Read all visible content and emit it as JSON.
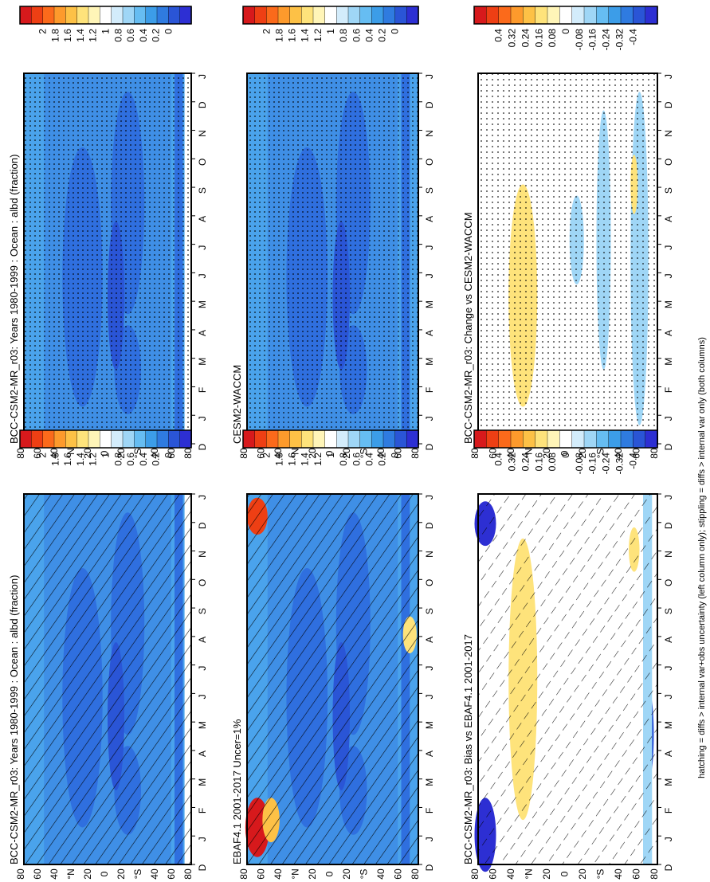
{
  "figure": {
    "footnote": "hatching = diffs > internal var+obs uncertainty (left column only); stippling = diffs > internal var only (both columns)"
  },
  "colorbars": {
    "absolute": {
      "labels": [
        "2",
        "1.8",
        "1.6",
        "1.4",
        "1.2",
        "1",
        "0.8",
        "0.6",
        "0.4",
        "0.2",
        "0"
      ],
      "colors": [
        "#d7191c",
        "#ee3f14",
        "#fb6a1b",
        "#fd9a2c",
        "#fdc146",
        "#fee37b",
        "#fff5b8",
        "#ffffff",
        "#d3ecfb",
        "#9fd6f6",
        "#66bdf2",
        "#3c9de8",
        "#2f7be0",
        "#2a55d6",
        "#2d2fd3"
      ]
    },
    "difference": {
      "labels": [
        "0.4",
        "0.32",
        "0.24",
        "0.16",
        "0.08",
        "0",
        "-0.08",
        "-0.16",
        "-0.24",
        "-0.32",
        "-0.4"
      ],
      "colors": [
        "#d7191c",
        "#ee3f14",
        "#fb6a1b",
        "#fd9a2c",
        "#fdc146",
        "#fee37b",
        "#fff5b8",
        "#ffffff",
        "#d3ecfb",
        "#9fd6f6",
        "#66bdf2",
        "#3c9de8",
        "#2f7be0",
        "#2a55d6",
        "#2d2fd3"
      ]
    }
  },
  "axes": {
    "months": [
      "D",
      "J",
      "F",
      "M",
      "A",
      "M",
      "J",
      "J",
      "A",
      "S",
      "O",
      "N",
      "D",
      "J"
    ],
    "lat_labels": [
      "80",
      "60",
      "40",
      "°N",
      "20",
      "0",
      "20",
      "°S",
      "40",
      "60",
      "80"
    ]
  },
  "panels": [
    {
      "id": "model-left",
      "title": "BCC-CSM2-MR_r03: Years 1980-1999 : Ocean : albd (fraction)",
      "colorbar": "absolute",
      "pattern": "hatch"
    },
    {
      "id": "obs",
      "title": "EBAF4.1 2001-2017 Uncer=1%",
      "colorbar": "absolute",
      "pattern": "hatch"
    },
    {
      "id": "bias",
      "title": "BCC-CSM2-MR_r03: Bias vs EBAF4.1 2001-2017",
      "colorbar": "difference",
      "pattern": "hatch-sparse"
    },
    {
      "id": "model-right",
      "title": "BCC-CSM2-MR_r03: Years 1980-1999 : Ocean : albd (fraction)",
      "colorbar": "absolute",
      "pattern": "stipple"
    },
    {
      "id": "ref",
      "title": "CESM2-WACCM",
      "colorbar": "absolute",
      "pattern": "stipple"
    },
    {
      "id": "change",
      "title": "BCC-CSM2-MR_r03: Change vs CESM2-WACCM",
      "colorbar": "difference",
      "pattern": "stipple-sparse"
    }
  ],
  "chart_data": [
    {
      "type": "heatmap",
      "title": "BCC-CSM2-MR_r03: Years 1980-1999 : Ocean : albd (fraction)",
      "x": [
        "D",
        "J",
        "F",
        "M",
        "A",
        "M",
        "J",
        "J",
        "A",
        "S",
        "O",
        "N",
        "D",
        "J"
      ],
      "y_range": [
        -90,
        90
      ],
      "value_range": [
        0,
        2
      ],
      "dominant_range": [
        0.2,
        0.8
      ]
    },
    {
      "type": "heatmap",
      "title": "EBAF4.1 2001-2017 Uncer=1%",
      "x": [
        "D",
        "J",
        "F",
        "M",
        "A",
        "M",
        "J",
        "J",
        "A",
        "S",
        "O",
        "N",
        "D",
        "J"
      ],
      "y_range": [
        -90,
        90
      ],
      "value_range": [
        0,
        2
      ],
      "dominant_range": [
        0.2,
        0.8
      ],
      "high_values_near": "80N in Dec-Feb (>1.6)"
    },
    {
      "type": "heatmap",
      "title": "BCC-CSM2-MR_r03: Bias vs EBAF4.1 2001-2017",
      "x": [
        "D",
        "J",
        "F",
        "M",
        "A",
        "M",
        "J",
        "J",
        "A",
        "S",
        "O",
        "N",
        "D",
        "J"
      ],
      "y_range": [
        -90,
        90
      ],
      "value_range": [
        -0.4,
        0.4
      ]
    },
    {
      "type": "heatmap",
      "title": "BCC-CSM2-MR_r03: Years 1980-1999 : Ocean : albd (fraction)",
      "x": [
        "D",
        "J",
        "F",
        "M",
        "A",
        "M",
        "J",
        "J",
        "A",
        "S",
        "O",
        "N",
        "D",
        "J"
      ],
      "y_range": [
        -90,
        90
      ],
      "value_range": [
        0,
        2
      ],
      "dominant_range": [
        0.2,
        0.8
      ]
    },
    {
      "type": "heatmap",
      "title": "CESM2-WACCM",
      "x": [
        "D",
        "J",
        "F",
        "M",
        "A",
        "M",
        "J",
        "J",
        "A",
        "S",
        "O",
        "N",
        "D",
        "J"
      ],
      "y_range": [
        -90,
        90
      ],
      "value_range": [
        0,
        2
      ],
      "dominant_range": [
        0.2,
        0.8
      ]
    },
    {
      "type": "heatmap",
      "title": "BCC-CSM2-MR_r03: Change vs CESM2-WACCM",
      "x": [
        "D",
        "J",
        "F",
        "M",
        "A",
        "M",
        "J",
        "J",
        "A",
        "S",
        "O",
        "N",
        "D",
        "J"
      ],
      "y_range": [
        -90,
        90
      ],
      "value_range": [
        -0.4,
        0.4
      ]
    }
  ]
}
